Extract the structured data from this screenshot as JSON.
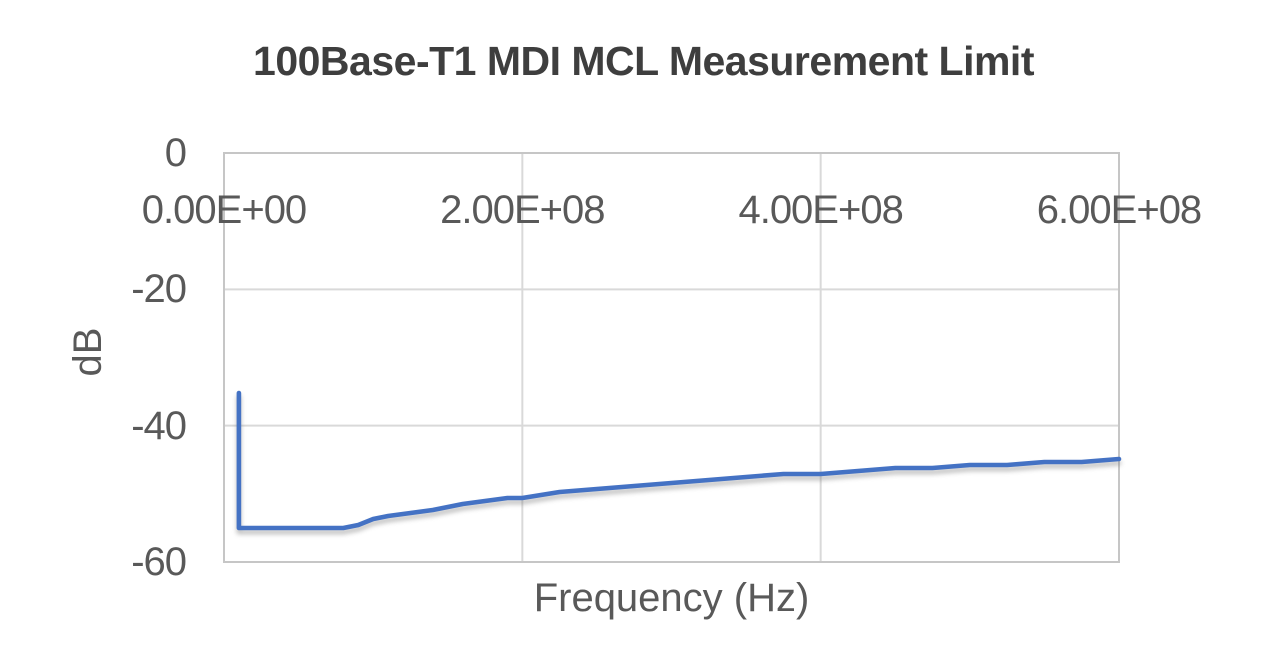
{
  "colors": {
    "line": "#4472C4",
    "gridline": "#D9D9D9",
    "border": "#C6C6C6",
    "title_text": "#3E3E3E",
    "axis_text": "#595959",
    "background": "#FFFFFF"
  },
  "chart_data": {
    "type": "line",
    "title": "100Base-T1 MDI MCL Measurement Limit",
    "xlabel": "Frequency (Hz)",
    "ylabel": "dB",
    "xlim": [
      0,
      600000000
    ],
    "ylim": [
      -60,
      0
    ],
    "grid": true,
    "legend": false,
    "x_ticks": [
      {
        "value": 0,
        "label": "0.00E+00"
      },
      {
        "value": 200000000,
        "label": "2.00E+08"
      },
      {
        "value": 400000000,
        "label": "4.00E+08"
      },
      {
        "value": 600000000,
        "label": "6.00E+08"
      }
    ],
    "y_ticks": [
      {
        "value": 0,
        "label": "0"
      },
      {
        "value": -20,
        "label": "-20"
      },
      {
        "value": -40,
        "label": "-40"
      },
      {
        "value": -60,
        "label": "-60"
      }
    ],
    "series": [
      {
        "name": "MCL Measurement Limit",
        "color": "#4472C4",
        "points": [
          [
            10000000,
            -35
          ],
          [
            10000000,
            -55
          ],
          [
            80000000,
            -55
          ],
          [
            90000000,
            -54.4
          ],
          [
            100000000,
            -53.9
          ],
          [
            110000000,
            -53.4
          ],
          [
            125000000,
            -52.8
          ],
          [
            140000000,
            -52.2
          ],
          [
            150000000,
            -51.9
          ],
          [
            160000000,
            -51.6
          ],
          [
            175000000,
            -51.1
          ],
          [
            190000000,
            -50.7
          ],
          [
            200000000,
            -50.5
          ],
          [
            225000000,
            -49.9
          ],
          [
            250000000,
            -49.3
          ],
          [
            275000000,
            -48.9
          ],
          [
            300000000,
            -48.4
          ],
          [
            325000000,
            -48.0
          ],
          [
            350000000,
            -47.7
          ],
          [
            375000000,
            -47.3
          ],
          [
            400000000,
            -47.0
          ],
          [
            425000000,
            -46.7
          ],
          [
            450000000,
            -46.4
          ],
          [
            475000000,
            -46.2
          ],
          [
            500000000,
            -45.9
          ],
          [
            525000000,
            -45.7
          ],
          [
            550000000,
            -45.4
          ],
          [
            575000000,
            -45.2
          ],
          [
            600000000,
            -45.0
          ]
        ]
      }
    ]
  }
}
